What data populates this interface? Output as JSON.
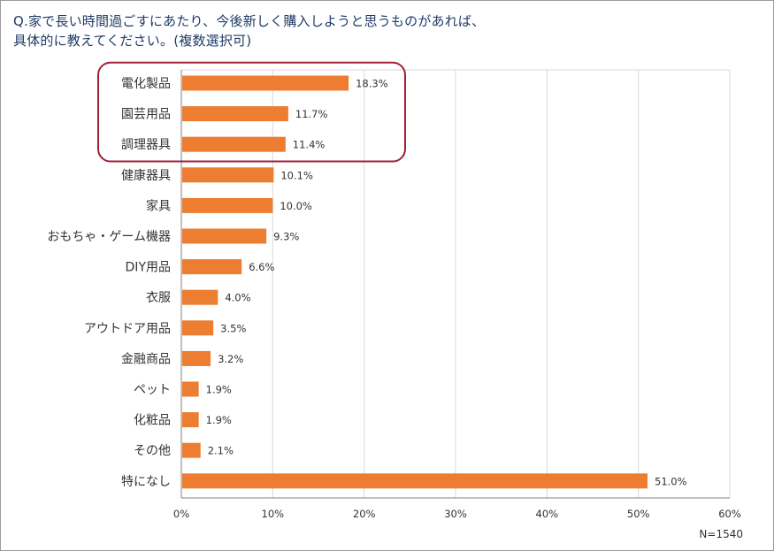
{
  "title": {
    "line1": "Q.家で長い時間過ごすにあたり、今後新しく購入しようと思うものがあれば、",
    "line2": "具体的に教えてください。(複数選択可)"
  },
  "note": "N=1540",
  "colors": {
    "bar": "#ed7d31",
    "highlight": "#a0203a",
    "grid": "#d9d9d9",
    "axis": "#808080"
  },
  "chart_data": {
    "type": "bar",
    "orientation": "horizontal",
    "categories": [
      "電化製品",
      "園芸用品",
      "調理器具",
      "健康器具",
      "家具",
      "おもちゃ・ゲーム機器",
      "DIY用品",
      "衣服",
      "アウトドア用品",
      "金融商品",
      "ペット",
      "化粧品",
      "その他",
      "特になし"
    ],
    "values": [
      18.3,
      11.7,
      11.4,
      10.1,
      10.0,
      9.3,
      6.6,
      4.0,
      3.5,
      3.2,
      1.9,
      1.9,
      2.1,
      51.0
    ],
    "value_labels": [
      "18.3%",
      "11.7%",
      "11.4%",
      "10.1%",
      "10.0%",
      "9.3%",
      "6.6%",
      "4.0%",
      "3.5%",
      "3.2%",
      "1.9%",
      "1.9%",
      "2.1%",
      "51.0%"
    ],
    "xticks": [
      0,
      10,
      20,
      30,
      40,
      50,
      60
    ],
    "xtick_labels": [
      "0%",
      "10%",
      "20%",
      "30%",
      "40%",
      "50%",
      "60%"
    ],
    "xlim": [
      0,
      60
    ],
    "grid": true,
    "highlighted_categories": [
      "電化製品",
      "園芸用品",
      "調理器具"
    ]
  }
}
